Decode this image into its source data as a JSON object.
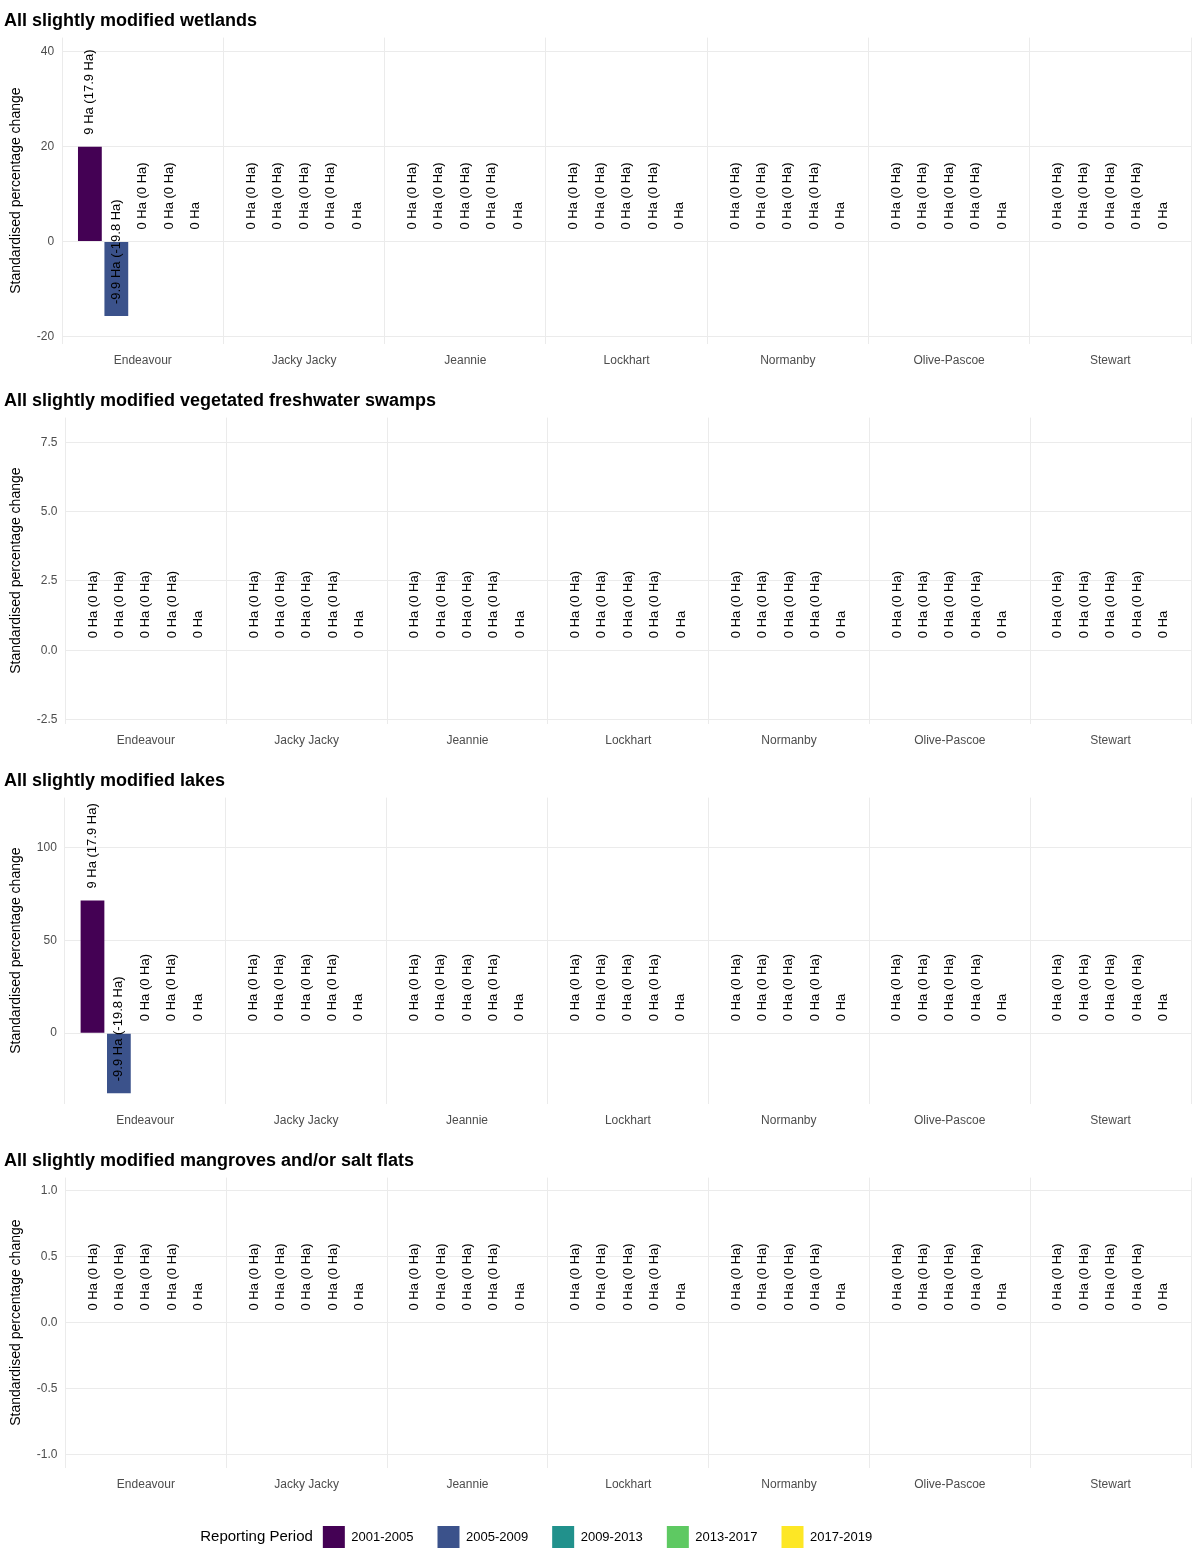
{
  "chart_data": [
    {
      "type": "bar",
      "title": "All slightly modified wetlands",
      "ylabel": "Standardised percentage change",
      "categories": [
        "Endeavour",
        "Jacky Jacky",
        "Jeannie",
        "Lockhart",
        "Normanby",
        "Olive-Pascoe",
        "Stewart"
      ],
      "ylim": [
        -21.5,
        43
      ],
      "yticks": [
        -20,
        0,
        20,
        40
      ],
      "grid": true,
      "legend": false,
      "series": [
        {
          "color": "#440154",
          "values": [
            20,
            0,
            0,
            0,
            0,
            0,
            0
          ]
        },
        {
          "color": "#3b528b",
          "values": [
            -15.7,
            0,
            0,
            0,
            0,
            0,
            0
          ]
        },
        {
          "color": "#21918c",
          "values": [
            0,
            0,
            0,
            0,
            0,
            0,
            0
          ]
        },
        {
          "color": "#5ec962",
          "values": [
            0,
            0,
            0,
            0,
            0,
            0,
            0
          ]
        },
        {
          "color": "#fde725",
          "values": [
            0,
            0,
            0,
            0,
            0,
            0,
            0
          ]
        }
      ],
      "annotations": [
        "9 Ha (17.9 Ha)",
        "-9.9 Ha (-19.8 Ha)",
        "0 Ha (0 Ha)",
        "0 Ha (0 Ha)",
        "0 Ha",
        "0 Ha (0 Ha)",
        "0 Ha (0 Ha)",
        "0 Ha (0 Ha)",
        "0 Ha (0 Ha)",
        "0 Ha",
        "0 Ha (0 Ha)",
        "0 Ha (0 Ha)",
        "0 Ha (0 Ha)",
        "0 Ha (0 Ha)",
        "0 Ha",
        "0 Ha (0 Ha)",
        "0 Ha (0 Ha)",
        "0 Ha (0 Ha)",
        "0 Ha (0 Ha)",
        "0 Ha",
        "0 Ha (0 Ha)",
        "0 Ha (0 Ha)",
        "0 Ha (0 Ha)",
        "0 Ha (0 Ha)",
        "0 Ha",
        "0 Ha (0 Ha)",
        "0 Ha (0 Ha)",
        "0 Ha (0 Ha)",
        "0 Ha (0 Ha)",
        "0 Ha",
        "0 Ha (0 Ha)",
        "0 Ha (0 Ha)",
        "0 Ha (0 Ha)",
        "0 Ha (0 Ha)",
        "0 Ha"
      ]
    },
    {
      "type": "bar",
      "title": "All slightly modified vegetated freshwater swamps",
      "ylabel": "Standardised percentage change",
      "categories": [
        "Endeavour",
        "Jacky Jacky",
        "Jeannie",
        "Lockhart",
        "Normanby",
        "Olive-Pascoe",
        "Stewart"
      ],
      "ylim": [
        -2.65,
        8.4
      ],
      "yticks": [
        -2.5,
        {
          "value": 0,
          "label": "0.0"
        },
        2.5,
        {
          "value": 5,
          "label": "5.0"
        },
        7.5
      ],
      "grid": true,
      "legend": false,
      "series": [
        {
          "color": "#440154",
          "values": [
            0,
            0,
            0,
            0,
            0,
            0,
            0
          ]
        },
        {
          "color": "#3b528b",
          "values": [
            0,
            0,
            0,
            0,
            0,
            0,
            0
          ]
        },
        {
          "color": "#21918c",
          "values": [
            0,
            0,
            0,
            0,
            0,
            0,
            0
          ]
        },
        {
          "color": "#5ec962",
          "values": [
            0,
            0,
            0,
            0,
            0,
            0,
            0
          ]
        },
        {
          "color": "#fde725",
          "values": [
            0,
            0,
            0,
            0,
            0,
            0,
            0
          ]
        }
      ],
      "annotations": [
        "0 Ha (0 Ha)",
        "0 Ha (0 Ha)",
        "0 Ha (0 Ha)",
        "0 Ha (0 Ha)",
        "0 Ha",
        "0 Ha (0 Ha)",
        "0 Ha (0 Ha)",
        "0 Ha (0 Ha)",
        "0 Ha (0 Ha)",
        "0 Ha",
        "0 Ha (0 Ha)",
        "0 Ha (0 Ha)",
        "0 Ha (0 Ha)",
        "0 Ha (0 Ha)",
        "0 Ha",
        "0 Ha (0 Ha)",
        "0 Ha (0 Ha)",
        "0 Ha (0 Ha)",
        "0 Ha (0 Ha)",
        "0 Ha",
        "0 Ha (0 Ha)",
        "0 Ha (0 Ha)",
        "0 Ha (0 Ha)",
        "0 Ha (0 Ha)",
        "0 Ha",
        "0 Ha (0 Ha)",
        "0 Ha (0 Ha)",
        "0 Ha (0 Ha)",
        "0 Ha (0 Ha)",
        "0 Ha",
        "0 Ha (0 Ha)",
        "0 Ha (0 Ha)",
        "0 Ha (0 Ha)",
        "0 Ha (0 Ha)",
        "0 Ha"
      ]
    },
    {
      "type": "bar",
      "title": "All slightly modified lakes",
      "ylabel": "Standardised percentage change",
      "categories": [
        "Endeavour",
        "Jacky Jacky",
        "Jeannie",
        "Lockhart",
        "Normanby",
        "Olive-Pascoe",
        "Stewart"
      ],
      "ylim": [
        -38,
        127
      ],
      "yticks": [
        0,
        50,
        100
      ],
      "grid": true,
      "legend": false,
      "series": [
        {
          "color": "#440154",
          "values": [
            71.5,
            0,
            0,
            0,
            0,
            0,
            0
          ]
        },
        {
          "color": "#3b528b",
          "values": [
            -32.4,
            0,
            0,
            0,
            0,
            0,
            0
          ]
        },
        {
          "color": "#21918c",
          "values": [
            0,
            0,
            0,
            0,
            0,
            0,
            0
          ]
        },
        {
          "color": "#5ec962",
          "values": [
            0,
            0,
            0,
            0,
            0,
            0,
            0
          ]
        },
        {
          "color": "#fde725",
          "values": [
            0,
            0,
            0,
            0,
            0,
            0,
            0
          ]
        }
      ],
      "annotations": [
        "9 Ha (17.9 Ha)",
        "-9.9 Ha (-19.8 Ha)",
        "0 Ha (0 Ha)",
        "0 Ha (0 Ha)",
        "0 Ha",
        "0 Ha (0 Ha)",
        "0 Ha (0 Ha)",
        "0 Ha (0 Ha)",
        "0 Ha (0 Ha)",
        "0 Ha",
        "0 Ha (0 Ha)",
        "0 Ha (0 Ha)",
        "0 Ha (0 Ha)",
        "0 Ha (0 Ha)",
        "0 Ha",
        "0 Ha (0 Ha)",
        "0 Ha (0 Ha)",
        "0 Ha (0 Ha)",
        "0 Ha (0 Ha)",
        "0 Ha",
        "0 Ha (0 Ha)",
        "0 Ha (0 Ha)",
        "0 Ha (0 Ha)",
        "0 Ha (0 Ha)",
        "0 Ha",
        "0 Ha (0 Ha)",
        "0 Ha (0 Ha)",
        "0 Ha (0 Ha)",
        "0 Ha (0 Ha)",
        "0 Ha",
        "0 Ha (0 Ha)",
        "0 Ha (0 Ha)",
        "0 Ha (0 Ha)",
        "0 Ha (0 Ha)",
        "0 Ha"
      ]
    },
    {
      "type": "bar",
      "title": "All slightly modified mangroves and/or salt flats",
      "ylabel": "Standardised percentage change",
      "categories": [
        "Endeavour",
        "Jacky Jacky",
        "Jeannie",
        "Lockhart",
        "Normanby",
        "Olive-Pascoe",
        "Stewart"
      ],
      "ylim": [
        -1.1,
        1.1
      ],
      "yticks": [
        {
          "value": -1,
          "label": "-1.0"
        },
        -0.5,
        {
          "value": 0,
          "label": "0.0"
        },
        0.5,
        {
          "value": 1,
          "label": "1.0"
        }
      ],
      "grid": true,
      "legend": "bottom",
      "legend_title": "Reporting Period",
      "series": [
        {
          "name": "2001-2005",
          "color": "#440154",
          "values": [
            0,
            0,
            0,
            0,
            0,
            0,
            0
          ]
        },
        {
          "name": "2005-2009",
          "color": "#3b528b",
          "values": [
            0,
            0,
            0,
            0,
            0,
            0,
            0
          ]
        },
        {
          "name": "2009-2013",
          "color": "#21918c",
          "values": [
            0,
            0,
            0,
            0,
            0,
            0,
            0
          ]
        },
        {
          "name": "2013-2017",
          "color": "#5ec962",
          "values": [
            0,
            0,
            0,
            0,
            0,
            0,
            0
          ]
        },
        {
          "name": "2017-2019",
          "color": "#fde725",
          "values": [
            0,
            0,
            0,
            0,
            0,
            0,
            0
          ]
        }
      ],
      "annotations": [
        "0 Ha (0 Ha)",
        "0 Ha (0 Ha)",
        "0 Ha (0 Ha)",
        "0 Ha (0 Ha)",
        "0 Ha",
        "0 Ha (0 Ha)",
        "0 Ha (0 Ha)",
        "0 Ha (0 Ha)",
        "0 Ha (0 Ha)",
        "0 Ha",
        "0 Ha (0 Ha)",
        "0 Ha (0 Ha)",
        "0 Ha (0 Ha)",
        "0 Ha (0 Ha)",
        "0 Ha",
        "0 Ha (0 Ha)",
        "0 Ha (0 Ha)",
        "0 Ha (0 Ha)",
        "0 Ha (0 Ha)",
        "0 Ha",
        "0 Ha (0 Ha)",
        "0 Ha (0 Ha)",
        "0 Ha (0 Ha)",
        "0 Ha (0 Ha)",
        "0 Ha",
        "0 Ha (0 Ha)",
        "0 Ha (0 Ha)",
        "0 Ha (0 Ha)",
        "0 Ha (0 Ha)",
        "0 Ha",
        "0 Ha (0 Ha)",
        "0 Ha (0 Ha)",
        "0 Ha (0 Ha)",
        "0 Ha (0 Ha)",
        "0 Ha"
      ]
    }
  ]
}
